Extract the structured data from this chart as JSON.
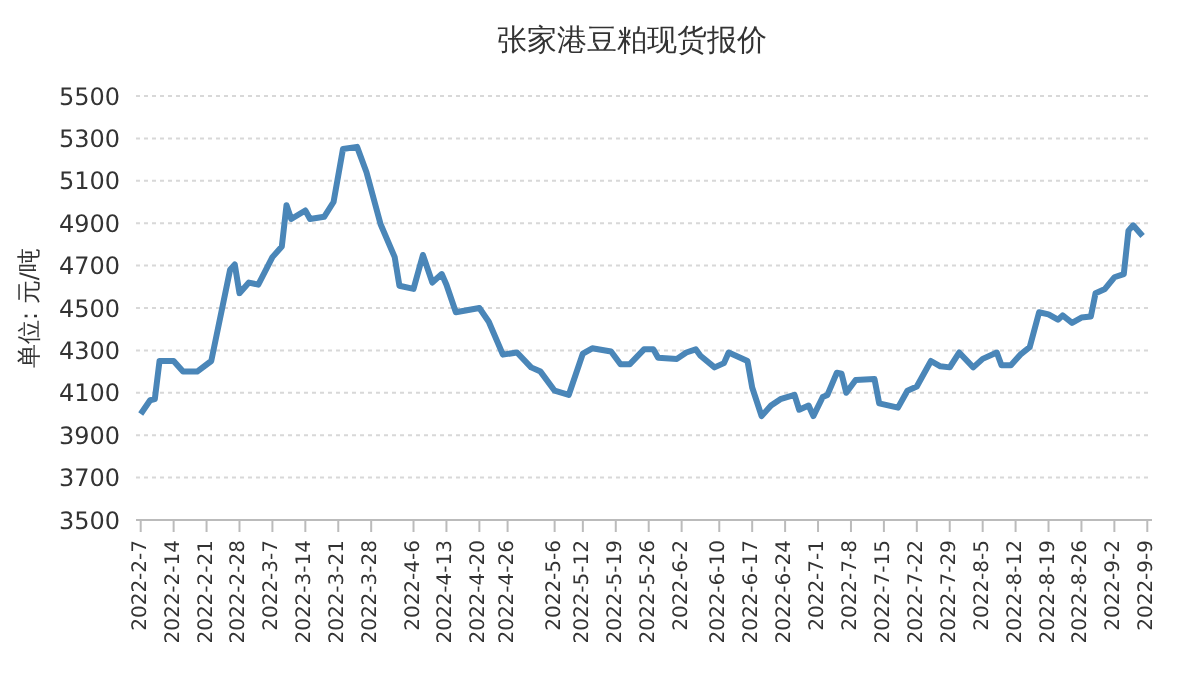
{
  "chart_data": {
    "type": "line",
    "title": "张家港豆粕现货报价",
    "ylabel": "单位: 元/吨",
    "x": [
      "2022-02-07",
      "2022-02-09",
      "2022-02-10",
      "2022-02-11",
      "2022-02-14",
      "2022-02-16",
      "2022-02-19",
      "2022-02-22",
      "2022-02-26",
      "2022-02-27",
      "2022-02-28",
      "2022-03-02",
      "2022-03-04",
      "2022-03-07",
      "2022-03-09",
      "2022-03-10",
      "2022-03-11",
      "2022-03-14",
      "2022-03-15",
      "2022-03-18",
      "2022-03-20",
      "2022-03-22",
      "2022-03-25",
      "2022-03-27",
      "2022-03-30",
      "2022-04-02",
      "2022-04-03",
      "2022-04-06",
      "2022-04-08",
      "2022-04-10",
      "2022-04-12",
      "2022-04-13",
      "2022-04-15",
      "2022-04-20",
      "2022-04-22",
      "2022-04-25",
      "2022-04-28",
      "2022-05-01",
      "2022-05-03",
      "2022-05-06",
      "2022-05-09",
      "2022-05-12",
      "2022-05-14",
      "2022-05-18",
      "2022-05-20",
      "2022-05-22",
      "2022-05-25",
      "2022-05-27",
      "2022-05-28",
      "2022-06-01",
      "2022-06-03",
      "2022-06-05",
      "2022-06-06",
      "2022-06-09",
      "2022-06-11",
      "2022-06-12",
      "2022-06-16",
      "2022-06-17",
      "2022-06-19",
      "2022-06-21",
      "2022-06-23",
      "2022-06-26",
      "2022-06-27",
      "2022-06-29",
      "2022-06-30",
      "2022-07-02",
      "2022-07-03",
      "2022-07-05",
      "2022-07-06",
      "2022-07-07",
      "2022-07-09",
      "2022-07-13",
      "2022-07-14",
      "2022-07-18",
      "2022-07-20",
      "2022-07-22",
      "2022-07-25",
      "2022-07-27",
      "2022-07-29",
      "2022-07-31",
      "2022-08-03",
      "2022-08-05",
      "2022-08-08",
      "2022-08-09",
      "2022-08-11",
      "2022-08-13",
      "2022-08-15",
      "2022-08-17",
      "2022-08-19",
      "2022-08-21",
      "2022-08-22",
      "2022-08-24",
      "2022-08-26",
      "2022-08-28",
      "2022-08-29",
      "2022-08-31",
      "2022-09-02",
      "2022-09-04",
      "2022-09-05",
      "2022-09-06",
      "2022-09-08"
    ],
    "series": [
      {
        "color": "#4a86b8",
        "values": [
          4000,
          4065,
          4070,
          4250,
          4250,
          4200,
          4200,
          4250,
          4680,
          4705,
          4570,
          4620,
          4610,
          4740,
          4790,
          4985,
          4920,
          4960,
          4920,
          4930,
          5000,
          5250,
          5260,
          5140,
          4895,
          4740,
          4605,
          4590,
          4750,
          4620,
          4660,
          4610,
          4480,
          4500,
          4435,
          4280,
          4290,
          4220,
          4200,
          4110,
          4090,
          4285,
          4310,
          4295,
          4235,
          4235,
          4305,
          4305,
          4265,
          4260,
          4290,
          4305,
          4275,
          4220,
          4240,
          4290,
          4250,
          4125,
          3990,
          4040,
          4070,
          4090,
          4020,
          4040,
          3990,
          4080,
          4090,
          4195,
          4190,
          4100,
          4160,
          4165,
          4050,
          4030,
          4110,
          4130,
          4250,
          4225,
          4220,
          4290,
          4220,
          4260,
          4290,
          4230,
          4230,
          4280,
          4315,
          4480,
          4470,
          4445,
          4465,
          4430,
          4455,
          4460,
          4570,
          4590,
          4645,
          4660,
          4865,
          4890,
          4840
        ]
      }
    ],
    "xlim": [
      "2022-02-06",
      "2022-09-10"
    ],
    "xticks": [
      {
        "value": "2022-02-07",
        "label": "2022-2-7"
      },
      {
        "value": "2022-02-14",
        "label": "2022-2-14"
      },
      {
        "value": "2022-02-21",
        "label": "2022-2-21"
      },
      {
        "value": "2022-02-28",
        "label": "2022-2-28"
      },
      {
        "value": "2022-03-07",
        "label": "2022-3-7"
      },
      {
        "value": "2022-03-14",
        "label": "2022-3-14"
      },
      {
        "value": "2022-03-21",
        "label": "2022-3-21"
      },
      {
        "value": "2022-03-28",
        "label": "2022-3-28"
      },
      {
        "value": "2022-04-06",
        "label": "2022-4-6"
      },
      {
        "value": "2022-04-13",
        "label": "2022-4-13"
      },
      {
        "value": "2022-04-20",
        "label": "2022-4-20"
      },
      {
        "value": "2022-04-26",
        "label": "2022-4-26"
      },
      {
        "value": "2022-05-06",
        "label": "2022-5-6"
      },
      {
        "value": "2022-05-12",
        "label": "2022-5-12"
      },
      {
        "value": "2022-05-19",
        "label": "2022-5-19"
      },
      {
        "value": "2022-05-26",
        "label": "2022-5-26"
      },
      {
        "value": "2022-06-02",
        "label": "2022-6-2"
      },
      {
        "value": "2022-06-10",
        "label": "2022-6-10"
      },
      {
        "value": "2022-06-17",
        "label": "2022-6-17"
      },
      {
        "value": "2022-06-24",
        "label": "2022-6-24"
      },
      {
        "value": "2022-07-01",
        "label": "2022-7-1"
      },
      {
        "value": "2022-07-08",
        "label": "2022-7-8"
      },
      {
        "value": "2022-07-15",
        "label": "2022-7-15"
      },
      {
        "value": "2022-07-22",
        "label": "2022-7-22"
      },
      {
        "value": "2022-07-29",
        "label": "2022-7-29"
      },
      {
        "value": "2022-08-05",
        "label": "2022-8-5"
      },
      {
        "value": "2022-08-12",
        "label": "2022-8-12"
      },
      {
        "value": "2022-08-19",
        "label": "2022-8-19"
      },
      {
        "value": "2022-08-26",
        "label": "2022-8-26"
      },
      {
        "value": "2022-09-02",
        "label": "2022-9-2"
      },
      {
        "value": "2022-09-09",
        "label": "2022-9-9"
      }
    ],
    "ylim": [
      3500,
      5500
    ],
    "yticks": [
      3500,
      3700,
      3900,
      4100,
      4300,
      4500,
      4700,
      4900,
      5100,
      5300,
      5500
    ],
    "grid": "y",
    "legend": false,
    "marker": "none",
    "line_style": "solid"
  }
}
